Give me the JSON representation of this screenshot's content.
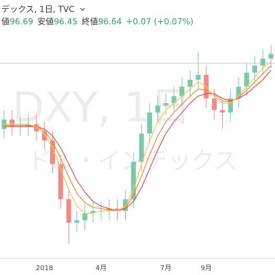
{
  "chart_data": {
    "type": "candlestick",
    "title": "デックス, 1日, TVC",
    "watermark": "DXY, 1日",
    "watermark_subtitle": "ドル・インデックス",
    "quote": [
      {
        "label": "値",
        "value": 96.69
      },
      {
        "label": "安値",
        "value": 96.45
      },
      {
        "label": "終値",
        "value": 96.64
      }
    ],
    "change": "+0.07 (+0.07%)",
    "categories": [
      null,
      null,
      null,
      null,
      null,
      "2018",
      null,
      null,
      null,
      null,
      null,
      null,
      "4月",
      null,
      null,
      null,
      null,
      null,
      null,
      null,
      "7月",
      null,
      null,
      null,
      null,
      "9月",
      null,
      null,
      null,
      null,
      null,
      null,
      null,
      null
    ],
    "open": [
      93.2,
      93.6,
      93.3,
      93.3,
      93.4,
      93.1,
      92.7,
      91.7,
      90.2,
      89.2,
      89.3,
      89.6,
      89.7,
      89.7,
      89.8,
      89.7,
      90.2,
      91.8,
      93.0,
      93.9,
      94.2,
      94.3,
      94.6,
      95.0,
      95.3,
      95.5,
      94.5,
      94.0,
      93.9,
      94.5,
      95.0,
      95.6,
      95.9,
      96.2
    ],
    "high": [
      94.0,
      94.0,
      93.7,
      93.8,
      93.8,
      93.5,
      93.1,
      92.1,
      90.6,
      89.7,
      90.0,
      90.1,
      90.1,
      90.2,
      90.2,
      90.6,
      92.2,
      93.4,
      94.3,
      94.6,
      94.7,
      95.0,
      95.4,
      95.7,
      96.5,
      95.9,
      94.9,
      94.4,
      94.9,
      95.4,
      96.0,
      96.3,
      96.6,
      96.8
    ],
    "low": [
      92.8,
      92.9,
      92.9,
      92.9,
      92.7,
      92.3,
      91.3,
      89.8,
      88.3,
      88.8,
      88.9,
      89.2,
      89.3,
      89.3,
      89.3,
      89.3,
      89.8,
      91.4,
      92.6,
      93.5,
      93.8,
      93.9,
      94.2,
      94.6,
      94.9,
      94.1,
      93.6,
      93.2,
      93.5,
      94.1,
      94.6,
      95.2,
      95.5,
      95.8
    ],
    "close": [
      93.6,
      93.3,
      93.3,
      93.4,
      93.1,
      92.7,
      91.7,
      90.2,
      89.2,
      89.3,
      89.6,
      89.7,
      89.7,
      89.8,
      89.7,
      90.2,
      91.8,
      93.0,
      93.9,
      94.2,
      94.3,
      94.6,
      95.0,
      95.3,
      95.5,
      94.5,
      94.0,
      93.9,
      94.5,
      95.0,
      95.6,
      95.9,
      96.2,
      96.4
    ],
    "up_color": "#7cc9a8",
    "down_color": "#f08a86",
    "series": [
      {
        "color": "#d9534f",
        "values": [
          93.3,
          93.3,
          93.3,
          93.3,
          93.3,
          93.2,
          92.9,
          92.4,
          91.7,
          91.0,
          90.5,
          90.1,
          89.9,
          89.8,
          89.7,
          89.8,
          90.1,
          90.7,
          91.5,
          92.3,
          93.0,
          93.5,
          93.9,
          94.3,
          94.6,
          94.7,
          94.7,
          94.5,
          94.4,
          94.5,
          94.7,
          95.0,
          95.3,
          95.7
        ]
      },
      {
        "color": "#f0883e",
        "values": [
          93.35,
          93.35,
          93.35,
          93.35,
          93.3,
          93.1,
          92.65,
          91.95,
          91.15,
          90.45,
          90.05,
          89.85,
          89.8,
          89.75,
          89.7,
          89.85,
          90.35,
          91.2,
          92.1,
          92.9,
          93.5,
          93.9,
          94.25,
          94.6,
          94.9,
          94.85,
          94.65,
          94.4,
          94.35,
          94.55,
          94.85,
          95.2,
          95.55,
          95.9
        ]
      },
      {
        "color": "#f5c45e",
        "values": [
          93.4,
          93.4,
          93.4,
          93.4,
          93.3,
          93.0,
          92.4,
          91.5,
          90.6,
          89.9,
          89.6,
          89.6,
          89.7,
          89.7,
          89.7,
          89.9,
          90.6,
          91.7,
          92.7,
          93.5,
          94.0,
          94.3,
          94.6,
          94.9,
          95.2,
          95.0,
          94.6,
          94.3,
          94.3,
          94.6,
          95.0,
          95.4,
          95.8,
          96.1
        ]
      }
    ],
    "price_line": 96.0,
    "ylim": [
      87.7,
      98.7
    ]
  }
}
